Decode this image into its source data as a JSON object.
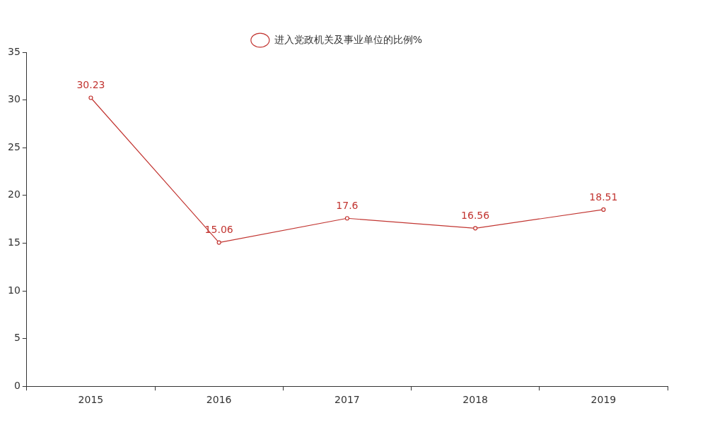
{
  "chart_data": {
    "type": "line",
    "categories": [
      "2015",
      "2016",
      "2017",
      "2018",
      "2019"
    ],
    "series": [
      {
        "name": "进入党政机关及事业单位的比例%",
        "color": "#c23531",
        "values": [
          30.23,
          15.06,
          17.6,
          16.56,
          18.51
        ]
      }
    ],
    "ylim": [
      0,
      35
    ],
    "yticks": [
      0,
      5,
      10,
      15,
      20,
      25,
      30,
      35
    ],
    "grid": false,
    "legend": "top",
    "marker": "circle",
    "line_style": "solid",
    "data_labels": true
  }
}
